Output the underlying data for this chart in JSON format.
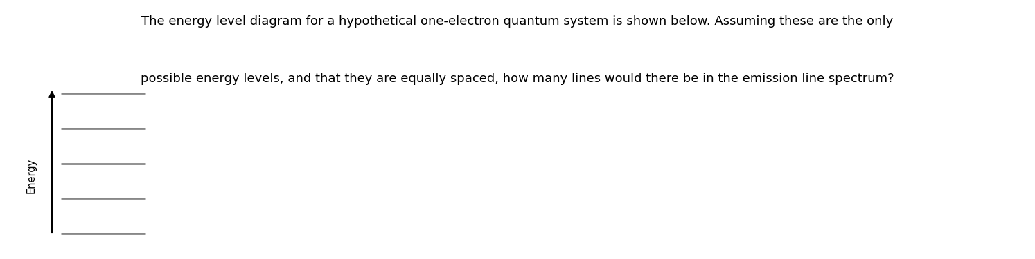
{
  "title_line1": "The energy level diagram for a hypothetical one-electron quantum system is shown below. Assuming these are the only",
  "title_line2": "possible energy levels, and that they are equally spaced, how many lines would there be in the emission line spectrum?",
  "title_fontsize": 13.0,
  "title_color": "#000000",
  "background_color": "#ffffff",
  "num_levels": 5,
  "level_color": "#888888",
  "level_linewidth": 2.0,
  "arrow_color": "#000000",
  "ylabel": "Energy",
  "ylabel_fontsize": 10.5,
  "ylabel_color": "#000000"
}
